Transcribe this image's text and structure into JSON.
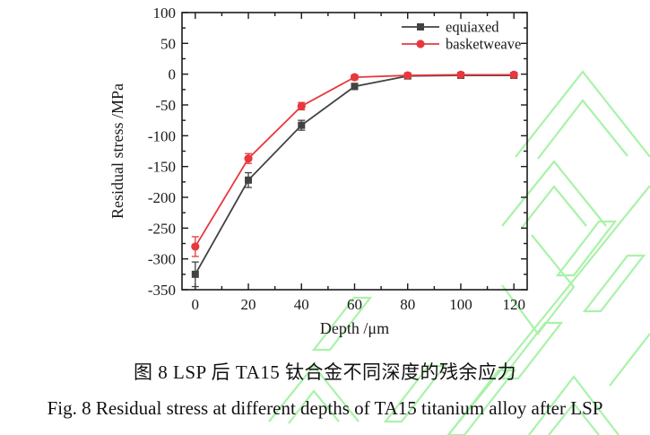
{
  "figure": {
    "caption_zh": "图 8 LSP 后 TA15 钛合金不同深度的残余应力",
    "caption_en": "Fig. 8 Residual stress at different depths of TA15 titanium alloy after LSP"
  },
  "chart_data": {
    "type": "line",
    "title": "",
    "xlabel": "Depth /μm",
    "ylabel": "Residual stress /MPa",
    "xlim": [
      -5,
      125
    ],
    "ylim": [
      -350,
      100
    ],
    "x_ticks": [
      0,
      20,
      40,
      60,
      80,
      100,
      120
    ],
    "x_minor_ticks": [
      10,
      30,
      50,
      70,
      90,
      110
    ],
    "y_ticks": [
      100,
      50,
      0,
      -50,
      -100,
      -150,
      -200,
      -250,
      -300,
      -350
    ],
    "y_minor_ticks": [
      75,
      25,
      -25,
      -75,
      -125,
      -175,
      -225,
      -275,
      -325
    ],
    "grid": false,
    "legend_position": "top-right",
    "x": [
      0,
      20,
      40,
      60,
      80,
      100,
      120
    ],
    "series": [
      {
        "name": "equiaxed",
        "marker": "square",
        "color": "#424242",
        "values": [
          -325,
          -172,
          -83,
          -20,
          -3,
          -2,
          -2
        ],
        "errors": [
          20,
          12,
          8,
          5,
          2,
          2,
          2
        ]
      },
      {
        "name": "basketweave",
        "marker": "circle",
        "color": "#e8383d",
        "values": [
          -280,
          -137,
          -52,
          -5,
          -2,
          -1,
          -1
        ],
        "errors": [
          16,
          8,
          6,
          4,
          2,
          2,
          2
        ]
      }
    ],
    "axis_color": "#1a1a1a"
  },
  "watermark": {
    "color": "#a9f2a9"
  }
}
